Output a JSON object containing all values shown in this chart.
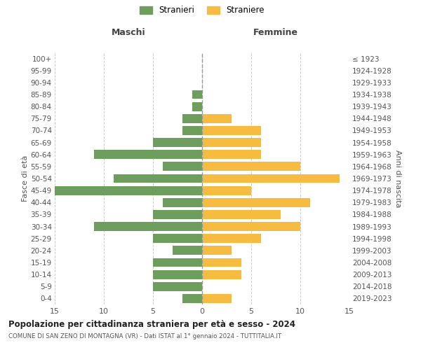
{
  "age_groups": [
    "0-4",
    "5-9",
    "10-14",
    "15-19",
    "20-24",
    "25-29",
    "30-34",
    "35-39",
    "40-44",
    "45-49",
    "50-54",
    "55-59",
    "60-64",
    "65-69",
    "70-74",
    "75-79",
    "80-84",
    "85-89",
    "90-94",
    "95-99",
    "100+"
  ],
  "birth_years": [
    "2019-2023",
    "2014-2018",
    "2009-2013",
    "2004-2008",
    "1999-2003",
    "1994-1998",
    "1989-1993",
    "1984-1988",
    "1979-1983",
    "1974-1978",
    "1969-1973",
    "1964-1968",
    "1959-1963",
    "1954-1958",
    "1949-1953",
    "1944-1948",
    "1939-1943",
    "1934-1938",
    "1929-1933",
    "1924-1928",
    "≤ 1923"
  ],
  "maschi": [
    2,
    5,
    5,
    5,
    3,
    5,
    11,
    5,
    4,
    15,
    9,
    4,
    11,
    5,
    2,
    2,
    1,
    1,
    0,
    0,
    0
  ],
  "femmine": [
    3,
    0,
    4,
    4,
    3,
    6,
    10,
    8,
    11,
    5,
    14,
    10,
    6,
    6,
    6,
    3,
    0,
    0,
    0,
    0,
    0
  ],
  "color_maschi": "#6e9e5e",
  "color_femmine": "#f5bc41",
  "title": "Popolazione per cittadinanza straniera per età e sesso - 2024",
  "subtitle": "COMUNE DI SAN ZENO DI MONTAGNA (VR) - Dati ISTAT al 1° gennaio 2024 - TUTTITALIA.IT",
  "xlabel_left": "Maschi",
  "xlabel_right": "Femmine",
  "ylabel_left": "Fasce di età",
  "ylabel_right": "Anni di nascita",
  "legend_maschi": "Stranieri",
  "legend_femmine": "Straniere",
  "xlim": 15,
  "background_color": "#ffffff",
  "grid_color": "#cccccc"
}
